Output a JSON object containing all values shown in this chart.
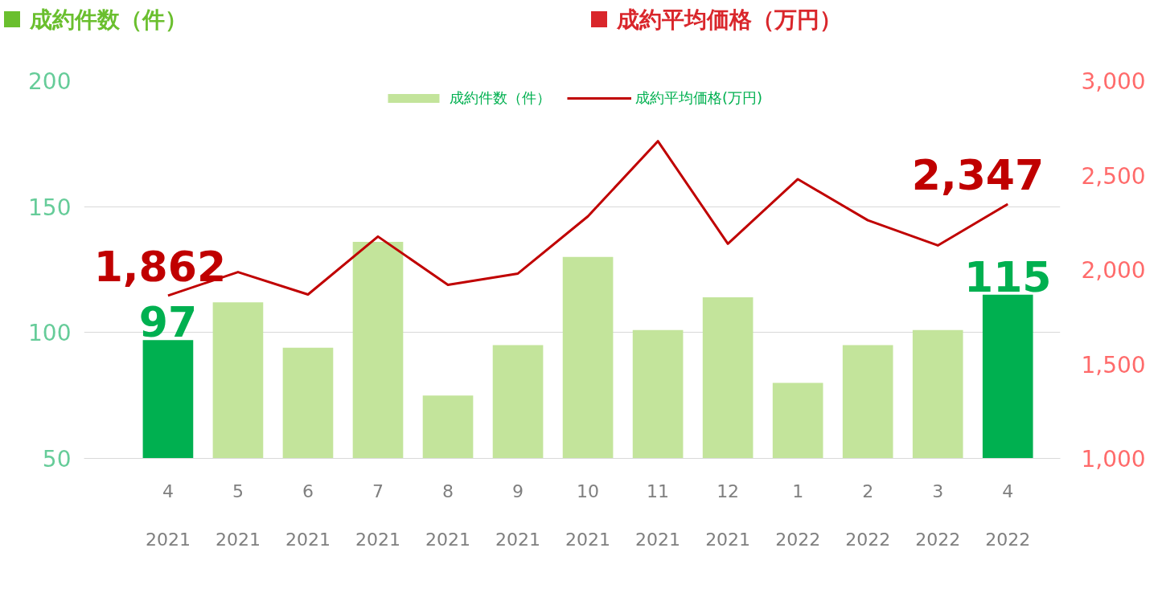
{
  "chart_data": {
    "type": "bar",
    "ylabel": "成約件数（件）",
    "y2label": "成約平均価格（万円）",
    "categories": [
      "4\n2021",
      "5\n2021",
      "6\n2021",
      "7\n2021",
      "8\n2021",
      "9\n2021",
      "10\n2021",
      "11\n2021",
      "12\n2021",
      "1\n2022",
      "2\n2022",
      "3\n2022",
      "4\n2022"
    ],
    "series": [
      {
        "name": "成約件数（件）",
        "color": "#c3e49b",
        "colors": [
          "#00b050",
          "#c3e49b",
          "#c3e49b",
          "#c3e49b",
          "#c3e49b",
          "#c3e49b",
          "#c3e49b",
          "#c3e49b",
          "#c3e49b",
          "#c3e49b",
          "#c3e49b",
          "#c3e49b",
          "#00b050"
        ],
        "values": [
          97,
          112,
          94,
          136,
          75,
          95,
          130,
          101,
          114,
          80,
          95,
          101,
          115
        ],
        "value_labels": [
          "97",
          null,
          null,
          null,
          null,
          null,
          null,
          null,
          null,
          null,
          null,
          null,
          "115"
        ]
      },
      {
        "name": "成約平均価格(万円)",
        "type": "line",
        "axis": "y2",
        "color": "#c00000",
        "values": [
          1862,
          1987,
          1868,
          2175,
          1919,
          1979,
          2282,
          2680,
          2137,
          2479,
          2261,
          2128,
          2347
        ],
        "value_labels": [
          "1,862",
          null,
          null,
          null,
          null,
          null,
          null,
          null,
          null,
          null,
          null,
          null,
          "2,347"
        ]
      }
    ],
    "ylim": [
      50,
      200
    ],
    "yticks": [
      50,
      100,
      150,
      200
    ],
    "y2lim": [
      1000,
      3000
    ],
    "y2ticks": [
      {
        "value": 1000,
        "label": "1,000"
      },
      {
        "value": 1500,
        "label": "1,500"
      },
      {
        "value": 2000,
        "label": "2,000"
      },
      {
        "value": 2500,
        "label": "2,500"
      },
      {
        "value": 3000,
        "label": "3,000"
      }
    ],
    "grid": "y",
    "legend": "top"
  }
}
